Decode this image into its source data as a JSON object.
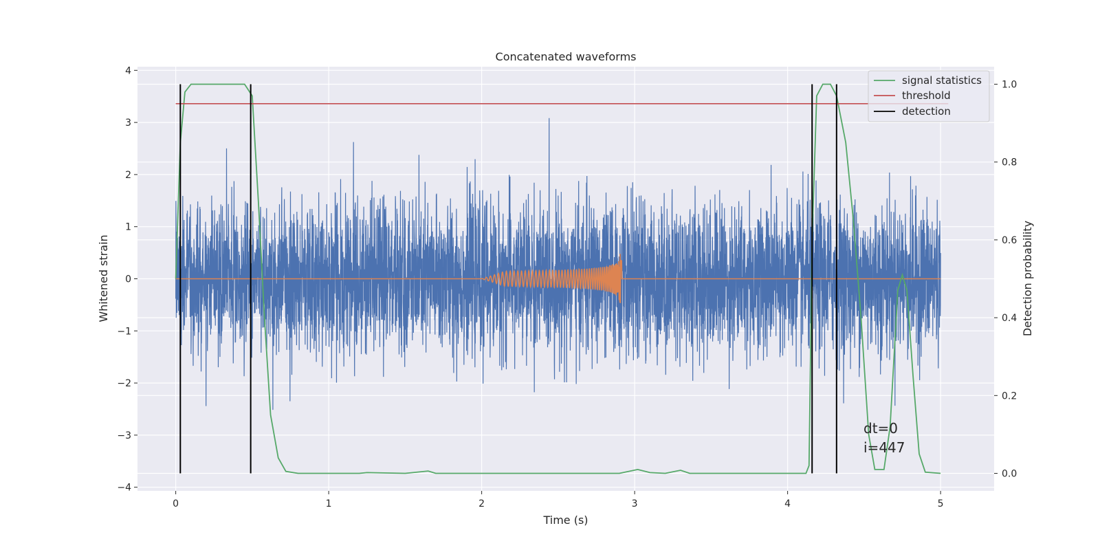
{
  "chart_data": {
    "type": "line",
    "title": "Concatenated waveforms",
    "xlabel": "Time (s)",
    "ylabel_left": "Whitened strain",
    "ylabel_right": "Detection probability",
    "xlim": [
      -0.25,
      5.35
    ],
    "ylim_left": [
      -4.07,
      4.07
    ],
    "ylim_right": [
      -0.045,
      1.045
    ],
    "xticks": [
      0,
      1,
      2,
      3,
      4,
      5
    ],
    "xtick_labels": [
      "0",
      "1",
      "2",
      "3",
      "4",
      "5"
    ],
    "yticks_left": [
      -4,
      -3,
      -2,
      -1,
      0,
      1,
      2,
      3,
      4
    ],
    "ytick_labels_left": [
      "−4",
      "−3",
      "−2",
      "−1",
      "0",
      "1",
      "2",
      "3",
      "4"
    ],
    "yticks_right": [
      0.0,
      0.2,
      0.4,
      0.6,
      0.8,
      1.0
    ],
    "ytick_labels_right": [
      "0.0",
      "0.2",
      "0.4",
      "0.6",
      "0.8",
      "1.0"
    ],
    "grid": true,
    "legend_position": "top-right",
    "background_color": "#eaeaf2",
    "series": [
      {
        "name": "",
        "axis": "left",
        "color": "#4c72b0",
        "kind": "noise",
        "x_range": [
          0,
          5
        ],
        "sigma": 0.72,
        "max_positive": 3.72,
        "min_negative": -3.72
      },
      {
        "name": "",
        "axis": "left",
        "color": "#dd8452",
        "kind": "chirp",
        "x_range": [
          0,
          5
        ],
        "chirp_start": 2.0,
        "chirp_peak": 2.9,
        "peak_amplitude": 0.68
      },
      {
        "name": "signal statistics",
        "axis": "right",
        "color": "#55a868",
        "points": [
          [
            0,
            0.5
          ],
          [
            0.03,
            0.85
          ],
          [
            0.06,
            0.98
          ],
          [
            0.1,
            1.0
          ],
          [
            0.45,
            1.0
          ],
          [
            0.5,
            0.97
          ],
          [
            0.54,
            0.7
          ],
          [
            0.58,
            0.4
          ],
          [
            0.62,
            0.15
          ],
          [
            0.67,
            0.04
          ],
          [
            0.72,
            0.005
          ],
          [
            0.8,
            0.0
          ],
          [
            1.2,
            0.0
          ],
          [
            1.25,
            0.002
          ],
          [
            1.5,
            0.0
          ],
          [
            1.65,
            0.006
          ],
          [
            1.7,
            0.0
          ],
          [
            2.9,
            0.0
          ],
          [
            3.02,
            0.01
          ],
          [
            3.1,
            0.002
          ],
          [
            3.2,
            0.0
          ],
          [
            3.3,
            0.008
          ],
          [
            3.36,
            0.0
          ],
          [
            4.12,
            0.0
          ],
          [
            4.14,
            0.02
          ],
          [
            4.16,
            0.6
          ],
          [
            4.19,
            0.97
          ],
          [
            4.23,
            1.0
          ],
          [
            4.28,
            1.0
          ],
          [
            4.32,
            0.97
          ],
          [
            4.38,
            0.85
          ],
          [
            4.43,
            0.65
          ],
          [
            4.48,
            0.4
          ],
          [
            4.53,
            0.1
          ],
          [
            4.57,
            0.01
          ],
          [
            4.63,
            0.01
          ],
          [
            4.67,
            0.12
          ],
          [
            4.72,
            0.47
          ],
          [
            4.75,
            0.51
          ],
          [
            4.78,
            0.47
          ],
          [
            4.82,
            0.25
          ],
          [
            4.86,
            0.05
          ],
          [
            4.9,
            0.003
          ],
          [
            5.0,
            0.0
          ]
        ]
      },
      {
        "name": "threshold",
        "axis": "right",
        "color": "#c44e52",
        "points": [
          [
            0,
            0.95
          ],
          [
            5.05,
            0.95
          ]
        ]
      },
      {
        "name": "detection",
        "axis": "right",
        "color": "#000000",
        "vlines": [
          0.03,
          0.49,
          4.16,
          4.32
        ],
        "vline_range": [
          0.0,
          1.0
        ]
      }
    ],
    "annotations": [
      "dt=0",
      "i=447"
    ]
  }
}
